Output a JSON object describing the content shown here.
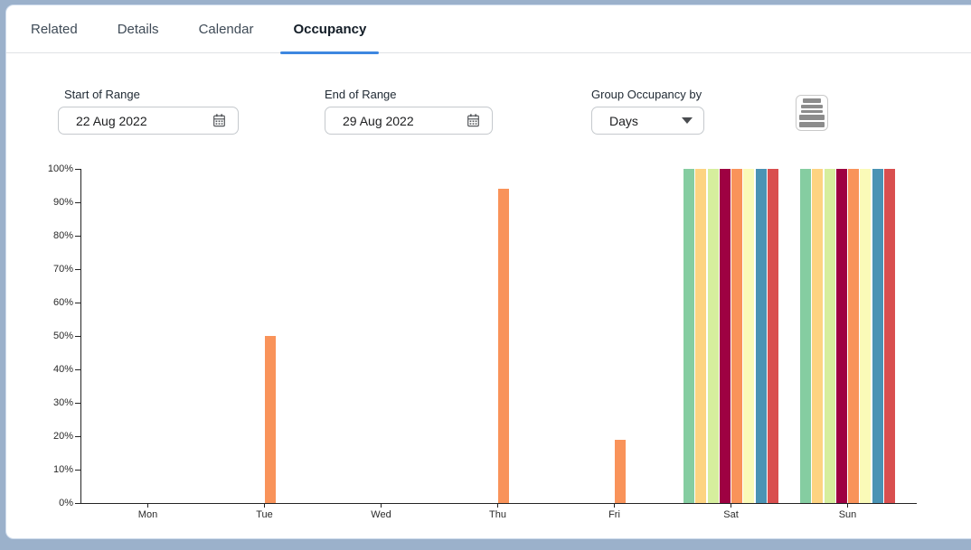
{
  "tabs": [
    {
      "label": "Related",
      "active": false
    },
    {
      "label": "Details",
      "active": false
    },
    {
      "label": "Calendar",
      "active": false
    },
    {
      "label": "Occupancy",
      "active": true
    }
  ],
  "filters": {
    "start": {
      "label": "Start of Range",
      "value": "22 Aug 2022"
    },
    "end": {
      "label": "End of Range",
      "value": "29 Aug 2022"
    },
    "group": {
      "label": "Group Occupancy by",
      "value": "Days"
    }
  },
  "icons": {
    "calendar": "calendar-icon",
    "dropdown_caret": "chevron-down-icon",
    "chart_menu": "chart-menu-icon"
  },
  "colors": {
    "tab_accent": "#3d87e0",
    "frame": "#9bb1cb",
    "axis": "#242424",
    "single_bar_orange": "#f9935a"
  },
  "chart_data": {
    "type": "bar",
    "title": "",
    "xlabel": "",
    "ylabel": "",
    "categories": [
      "Mon",
      "Tue",
      "Wed",
      "Thu",
      "Fri",
      "Sat",
      "Sun"
    ],
    "ylim": [
      0,
      100
    ],
    "ytick_step": 10,
    "ytick_labels": [
      "0%",
      "10%",
      "20%",
      "30%",
      "40%",
      "50%",
      "60%",
      "70%",
      "80%",
      "90%",
      "100%"
    ],
    "grid": false,
    "legend": "none",
    "series": [
      {
        "name": "series-1",
        "color": "#85cda1",
        "values": [
          0,
          0,
          0,
          0,
          0,
          100,
          100
        ]
      },
      {
        "name": "series-2",
        "color": "#fdd381",
        "values": [
          0,
          0,
          0,
          0,
          0,
          100,
          100
        ]
      },
      {
        "name": "series-3",
        "color": "#d6ee9d",
        "values": [
          0,
          0,
          0,
          0,
          0,
          100,
          100
        ]
      },
      {
        "name": "series-4",
        "color": "#9e0142",
        "values": [
          0,
          0,
          0,
          0,
          0,
          100,
          100
        ]
      },
      {
        "name": "series-5",
        "color": "#f9935a",
        "values": [
          0,
          50,
          0,
          94,
          19,
          100,
          100
        ]
      },
      {
        "name": "series-6",
        "color": "#fafab8",
        "values": [
          0,
          0,
          0,
          0,
          0,
          100,
          100
        ]
      },
      {
        "name": "series-7",
        "color": "#4a93b4",
        "values": [
          0,
          0,
          0,
          0,
          0,
          100,
          100
        ]
      },
      {
        "name": "series-8",
        "color": "#d94f4f",
        "values": [
          0,
          0,
          0,
          0,
          0,
          100,
          100
        ]
      }
    ]
  }
}
